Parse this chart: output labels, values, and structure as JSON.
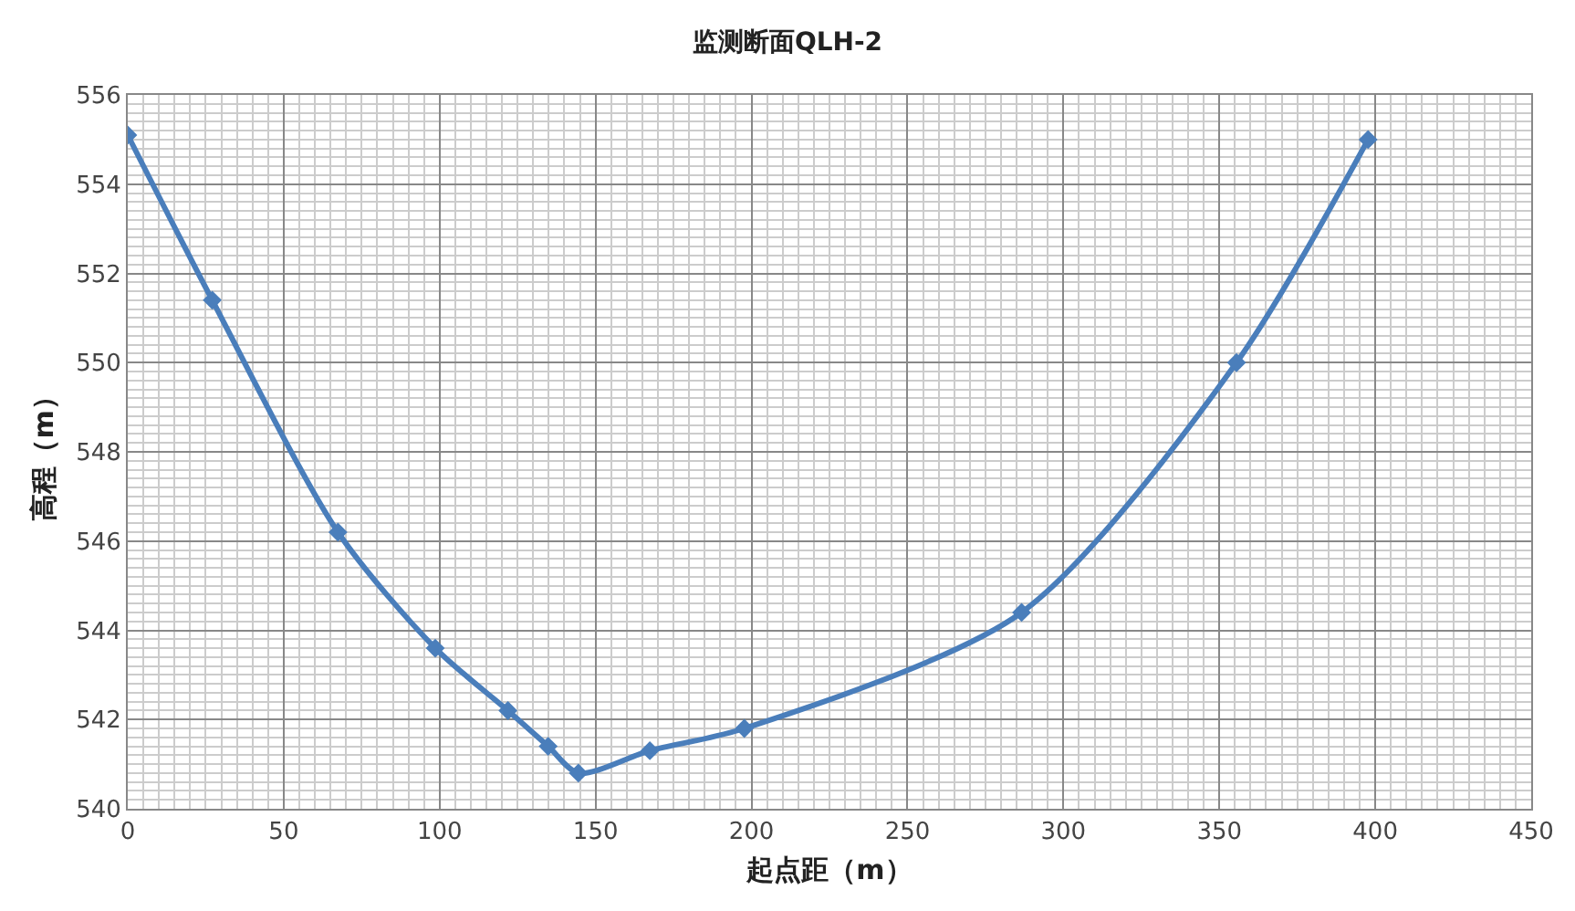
{
  "chart_data": {
    "type": "line",
    "title": "监测断面QLH-2",
    "xlabel": "起点距（m）",
    "ylabel": "高程（m）",
    "x": [
      0,
      27.1,
      67.4,
      98.6,
      121.9,
      134.8,
      144.5,
      167.4,
      197.7,
      286.6,
      355.5,
      397.7
    ],
    "series": [
      {
        "color": "#4a7ebb",
        "values": [
          555.1,
          551.4,
          546.2,
          543.6,
          542.2,
          541.4,
          540.8,
          541.3,
          541.8,
          544.4,
          550.0,
          555.0
        ]
      }
    ],
    "xlim": [
      0,
      450
    ],
    "xticks": [
      0,
      50,
      100,
      150,
      200,
      250,
      300,
      350,
      400,
      450
    ],
    "ylim": [
      540,
      556
    ],
    "yticks": [
      540,
      542,
      544,
      546,
      548,
      550,
      552,
      554,
      556
    ],
    "grid": true,
    "marker": "diamond",
    "line_style": "solid"
  }
}
